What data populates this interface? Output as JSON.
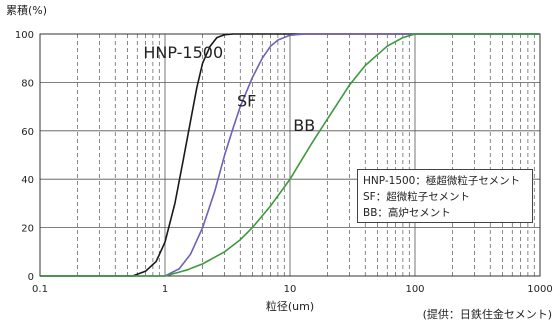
{
  "chart_data": {
    "type": "line",
    "ylabel": "累積(%)",
    "xlabel": "粒径(um)",
    "x_scale": "log",
    "xlim": [
      0.1,
      1000
    ],
    "ylim": [
      0,
      100
    ],
    "x_ticks": [
      "0.1",
      "1",
      "10",
      "100",
      "1000"
    ],
    "y_ticks": [
      "0",
      "20",
      "40",
      "60",
      "80",
      "100"
    ],
    "grid": true,
    "series": [
      {
        "name": "HNP-1500",
        "color": "#1a1a1a",
        "x": [
          0.1,
          0.55,
          0.7,
          0.85,
          1.0,
          1.2,
          1.4,
          1.6,
          1.8,
          2.0,
          2.3,
          2.6,
          3.0,
          3.5,
          5,
          10,
          100,
          1000
        ],
        "y": [
          0,
          0,
          2,
          6,
          14,
          30,
          48,
          64,
          78,
          88,
          95,
          98.5,
          99.7,
          100,
          100,
          100,
          100,
          100
        ]
      },
      {
        "name": "SF",
        "color": "#6b63b5",
        "x": [
          0.1,
          1.0,
          1.3,
          1.6,
          2.0,
          2.5,
          3.0,
          3.5,
          4.0,
          5.0,
          6.0,
          7.0,
          8.0,
          10,
          13,
          100,
          1000
        ],
        "y": [
          0,
          0,
          3,
          9,
          20,
          35,
          50,
          61,
          70,
          82,
          90,
          95,
          97.5,
          99.5,
          100,
          100,
          100
        ]
      },
      {
        "name": "BB",
        "color": "#3c9a3c",
        "x": [
          0.1,
          1.0,
          1.5,
          2.0,
          3.0,
          4.0,
          5.0,
          7.0,
          10,
          15,
          20,
          30,
          40,
          60,
          80,
          100,
          1000
        ],
        "y": [
          0,
          0,
          2.5,
          5,
          10,
          15,
          20,
          29,
          40,
          55,
          65,
          79,
          87,
          95,
          98.5,
          100,
          100
        ]
      }
    ],
    "annotations": [
      {
        "text": "HNP-1500",
        "x": 1.4,
        "y": 90
      },
      {
        "text": "SF",
        "x": 4.5,
        "y": 70
      },
      {
        "text": "BB",
        "x": 13,
        "y": 60
      }
    ],
    "legend_entries": [
      "HNP-1500：極超微粒子セメント",
      "SF：超微粒子セメント",
      "BB：高炉セメント"
    ],
    "legend_position": "right"
  },
  "credit": "(提供：日鉄住金セメント)"
}
